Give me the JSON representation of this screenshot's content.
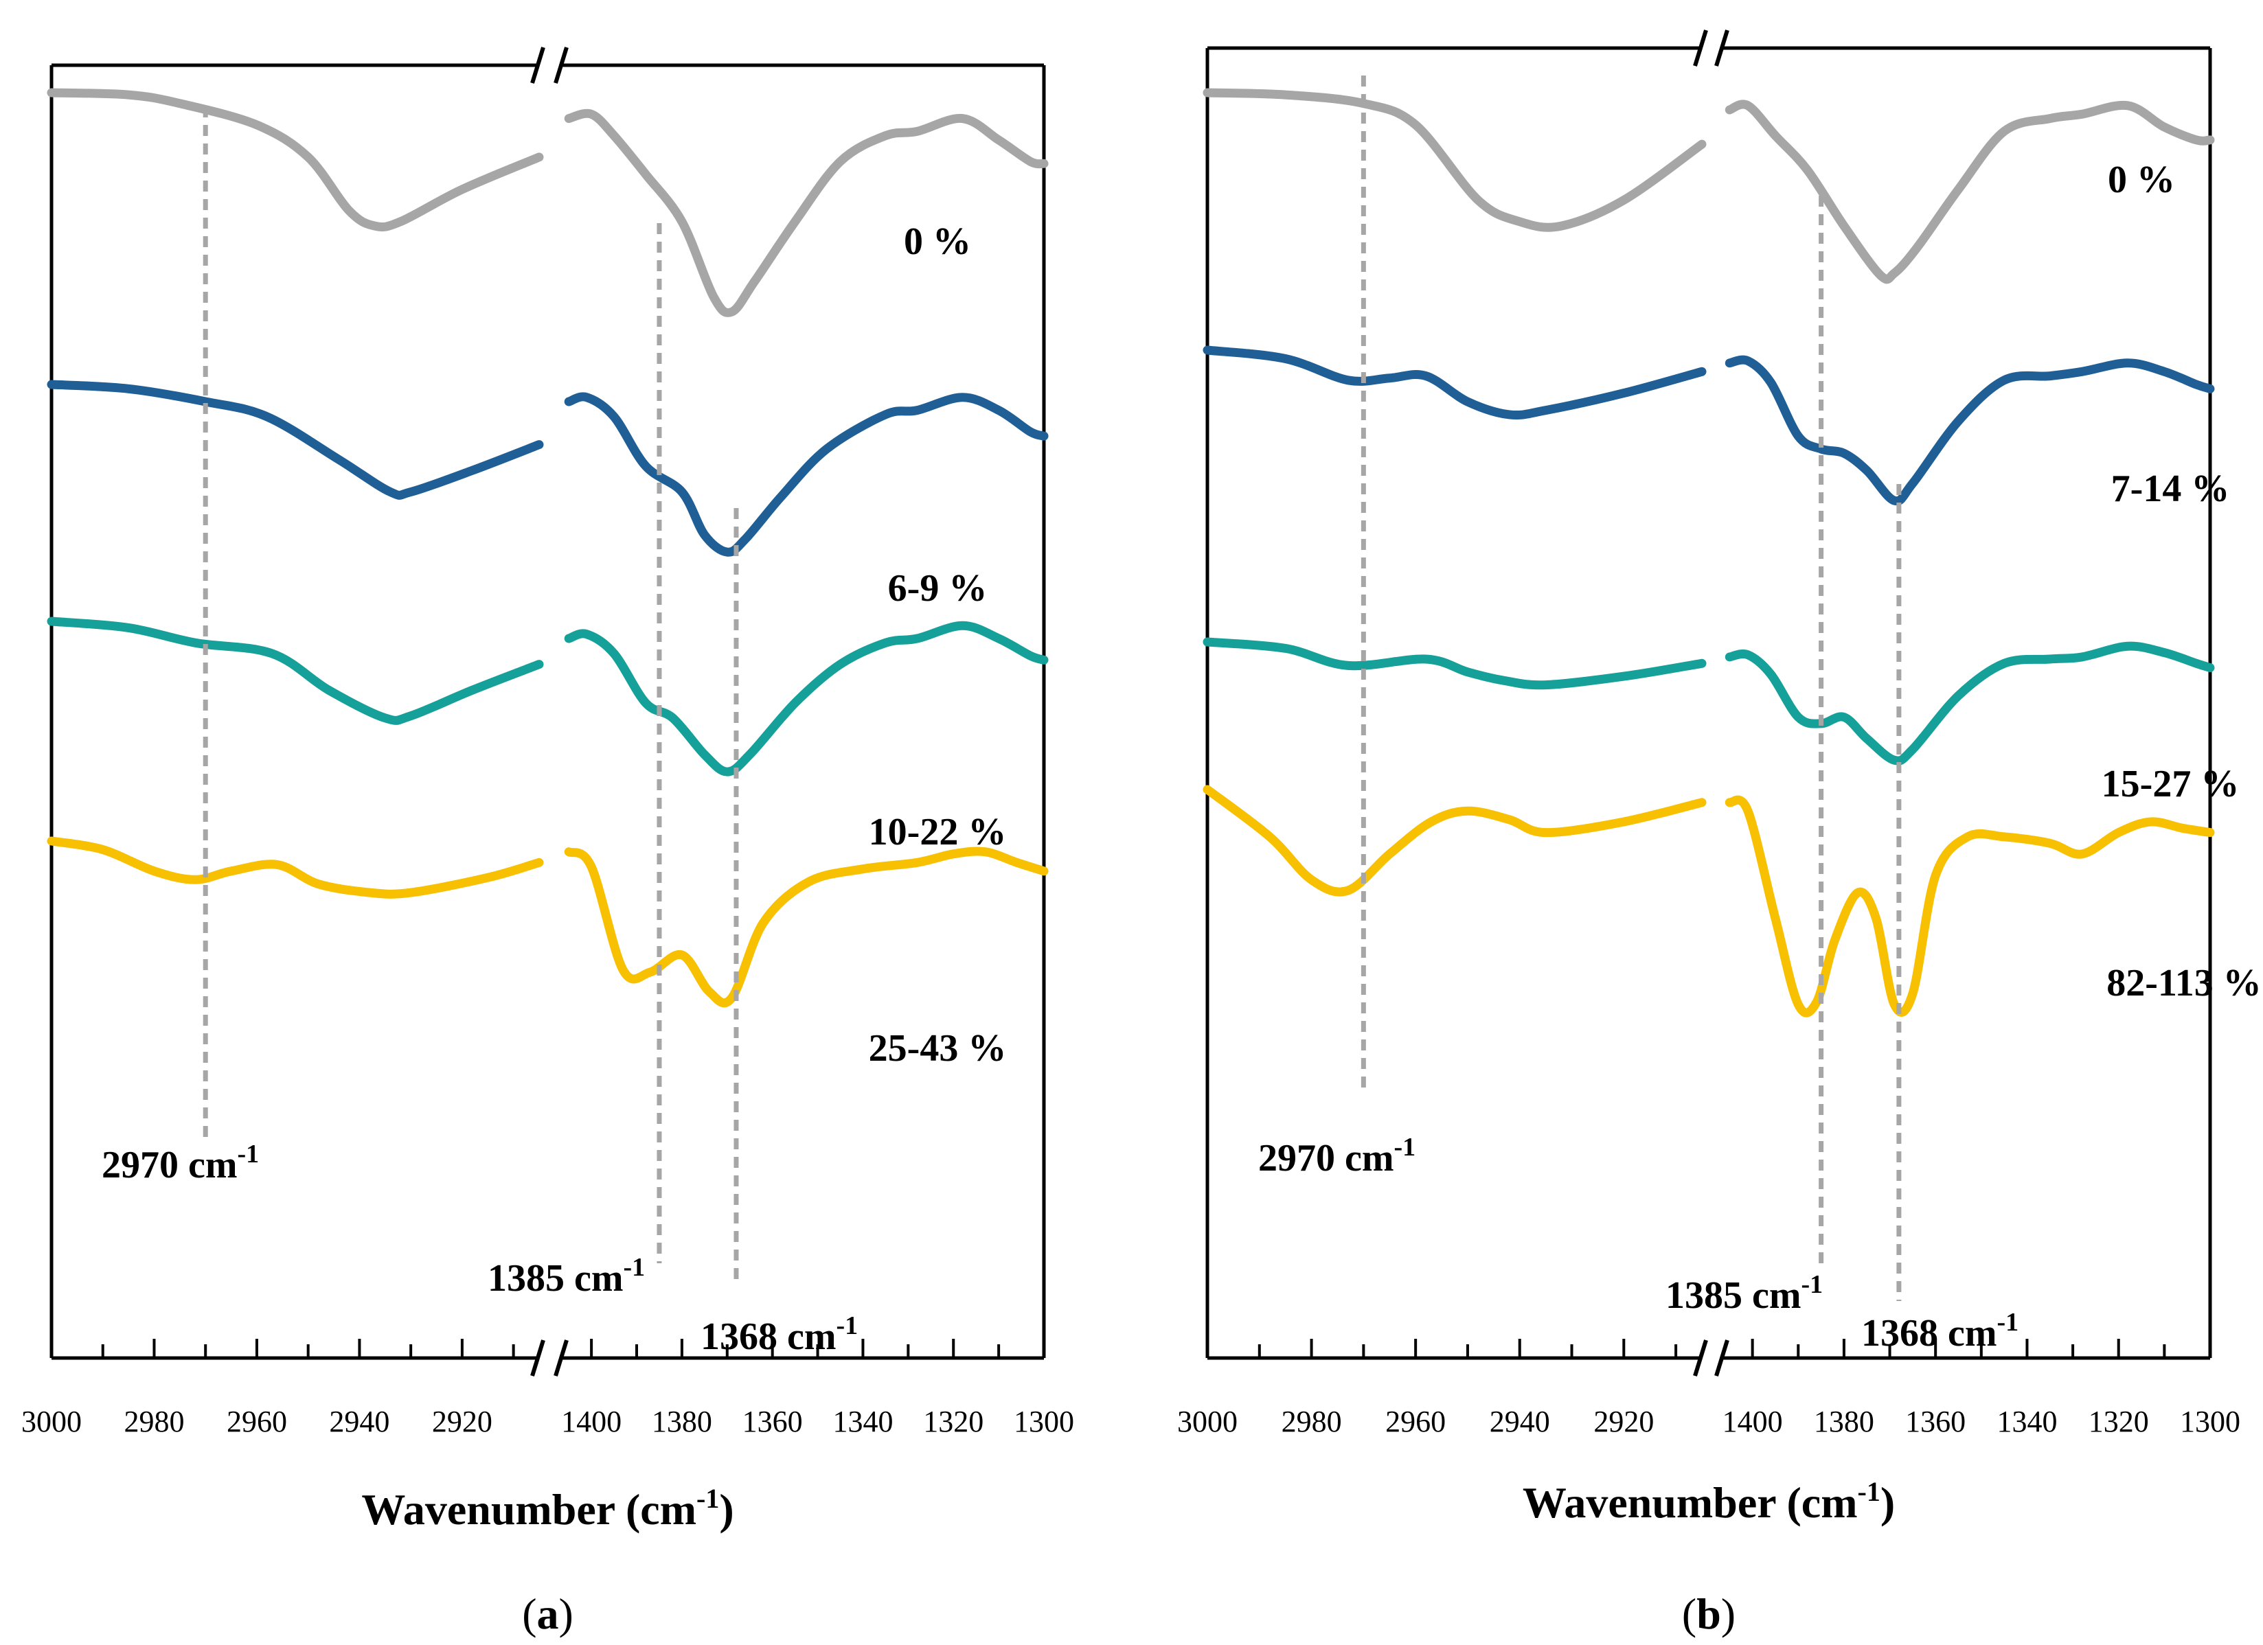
{
  "chart_data": [
    {
      "type": "line",
      "panel_label": "a",
      "xlabel": "Wavenumber (cm-1)",
      "xlabel_main": "Wavenumber (cm",
      "xlabel_sup": "-1",
      "xlabel_end": ")",
      "axis_break": true,
      "segments": [
        {
          "xlim": [
            3000,
            2905
          ],
          "ticks": [
            3000,
            2980,
            2960,
            2940,
            2920
          ],
          "tick_labels": [
            "3000",
            "2980",
            "2960",
            "2940",
            "2920"
          ]
        },
        {
          "xlim": [
            1407,
            1300
          ],
          "ticks": [
            1400,
            1380,
            1360,
            1340,
            1320,
            1300
          ],
          "tick_labels": [
            "1400",
            "1380",
            "1360",
            "1340",
            "1320",
            "1300"
          ]
        }
      ],
      "annotations": [
        {
          "x": 2970,
          "label": "2970 cm",
          "sup": "-1"
        },
        {
          "x": 1385,
          "label": "1385 cm",
          "sup": "-1"
        },
        {
          "x": 1368,
          "label": "1368 cm",
          "sup": "-1"
        }
      ],
      "series": [
        {
          "name": "0 %",
          "color": "#a6a6a6",
          "offset": 0.0,
          "high": [
            [
              3000,
              0.0
            ],
            [
              2985,
              0.01
            ],
            [
              2975,
              0.05
            ],
            [
              2960,
              0.15
            ],
            [
              2950,
              0.3
            ],
            [
              2942,
              0.55
            ],
            [
              2937,
              0.62
            ],
            [
              2932,
              0.6
            ],
            [
              2920,
              0.45
            ],
            [
              2905,
              0.3
            ]
          ],
          "low": [
            [
              1405,
              0.12
            ],
            [
              1400,
              0.1
            ],
            [
              1395,
              0.2
            ],
            [
              1388,
              0.38
            ],
            [
              1380,
              0.6
            ],
            [
              1373,
              0.95
            ],
            [
              1369,
              1.02
            ],
            [
              1364,
              0.88
            ],
            [
              1355,
              0.6
            ],
            [
              1345,
              0.32
            ],
            [
              1335,
              0.2
            ],
            [
              1328,
              0.18
            ],
            [
              1318,
              0.12
            ],
            [
              1310,
              0.22
            ],
            [
              1303,
              0.32
            ],
            [
              1300,
              0.33
            ]
          ]
        },
        {
          "name": "6-9 %",
          "color": "#1f5f96",
          "offset": 0.77,
          "high": [
            [
              3000,
              0.0
            ],
            [
              2985,
              0.02
            ],
            [
              2970,
              0.08
            ],
            [
              2958,
              0.15
            ],
            [
              2944,
              0.35
            ],
            [
              2934,
              0.5
            ],
            [
              2930,
              0.5
            ],
            [
              2918,
              0.4
            ],
            [
              2905,
              0.28
            ]
          ],
          "low": [
            [
              1405,
              0.08
            ],
            [
              1401,
              0.06
            ],
            [
              1395,
              0.15
            ],
            [
              1388,
              0.38
            ],
            [
              1380,
              0.5
            ],
            [
              1375,
              0.7
            ],
            [
              1370,
              0.78
            ],
            [
              1366,
              0.72
            ],
            [
              1358,
              0.52
            ],
            [
              1348,
              0.3
            ],
            [
              1335,
              0.14
            ],
            [
              1328,
              0.12
            ],
            [
              1318,
              0.06
            ],
            [
              1310,
              0.12
            ],
            [
              1303,
              0.22
            ],
            [
              1300,
              0.24
            ]
          ]
        },
        {
          "name": "10-22 %",
          "color": "#16a09a",
          "offset": 1.27,
          "high": [
            [
              3000,
              0.0
            ],
            [
              2985,
              0.03
            ],
            [
              2972,
              0.1
            ],
            [
              2957,
              0.15
            ],
            [
              2946,
              0.32
            ],
            [
              2935,
              0.45
            ],
            [
              2930,
              0.44
            ],
            [
              2918,
              0.32
            ],
            [
              2905,
              0.2
            ]
          ],
          "low": [
            [
              1405,
              0.08
            ],
            [
              1401,
              0.06
            ],
            [
              1395,
              0.15
            ],
            [
              1388,
              0.38
            ],
            [
              1382,
              0.45
            ],
            [
              1375,
              0.62
            ],
            [
              1370,
              0.7
            ],
            [
              1365,
              0.62
            ],
            [
              1355,
              0.38
            ],
            [
              1345,
              0.2
            ],
            [
              1335,
              0.1
            ],
            [
              1328,
              0.08
            ],
            [
              1318,
              0.02
            ],
            [
              1310,
              0.08
            ],
            [
              1303,
              0.16
            ],
            [
              1300,
              0.18
            ]
          ]
        },
        {
          "name": "25-43 %",
          "color": "#f7c000",
          "offset": 1.75,
          "high": [
            [
              3000,
              0.0
            ],
            [
              2990,
              0.04
            ],
            [
              2980,
              0.14
            ],
            [
              2972,
              0.18
            ],
            [
              2965,
              0.14
            ],
            [
              2956,
              0.11
            ],
            [
              2948,
              0.2
            ],
            [
              2938,
              0.24
            ],
            [
              2930,
              0.24
            ],
            [
              2915,
              0.17
            ],
            [
              2905,
              0.1
            ]
          ],
          "low": [
            [
              1405,
              0.05
            ],
            [
              1400,
              0.12
            ],
            [
              1393,
              0.6
            ],
            [
              1387,
              0.61
            ],
            [
              1380,
              0.53
            ],
            [
              1374,
              0.7
            ],
            [
              1369,
              0.73
            ],
            [
              1362,
              0.38
            ],
            [
              1352,
              0.19
            ],
            [
              1340,
              0.13
            ],
            [
              1328,
              0.1
            ],
            [
              1320,
              0.06
            ],
            [
              1313,
              0.05
            ],
            [
              1306,
              0.1
            ],
            [
              1300,
              0.14
            ]
          ]
        }
      ]
    },
    {
      "type": "line",
      "panel_label": "b",
      "xlabel": "Wavenumber (cm-1)",
      "xlabel_main": "Wavenumber (cm",
      "xlabel_sup": "-1",
      "xlabel_end": ")",
      "axis_break": true,
      "segments": [
        {
          "xlim": [
            3000,
            2905
          ],
          "ticks": [
            3000,
            2980,
            2960,
            2940,
            2920
          ],
          "tick_labels": [
            "3000",
            "2980",
            "2960",
            "2940",
            "2920"
          ]
        },
        {
          "xlim": [
            1407,
            1300
          ],
          "ticks": [
            1400,
            1380,
            1360,
            1340,
            1320,
            1300
          ],
          "tick_labels": [
            "1400",
            "1380",
            "1360",
            "1340",
            "1320",
            "1300"
          ]
        }
      ],
      "annotations": [
        {
          "x": 2970,
          "label": "2970 cm",
          "sup": "-1"
        },
        {
          "x": 1385,
          "label": "1385 cm",
          "sup": "-1"
        },
        {
          "x": 1368,
          "label": "1368 cm",
          "sup": "-1"
        }
      ],
      "series": [
        {
          "name": "0 %",
          "color": "#a6a6a6",
          "offset": 0.0,
          "high": [
            [
              3000,
              0.0
            ],
            [
              2985,
              0.01
            ],
            [
              2970,
              0.05
            ],
            [
              2960,
              0.15
            ],
            [
              2948,
              0.5
            ],
            [
              2940,
              0.6
            ],
            [
              2932,
              0.62
            ],
            [
              2920,
              0.5
            ],
            [
              2905,
              0.24
            ]
          ],
          "low": [
            [
              1405,
              0.08
            ],
            [
              1401,
              0.06
            ],
            [
              1395,
              0.2
            ],
            [
              1388,
              0.36
            ],
            [
              1380,
              0.62
            ],
            [
              1372,
              0.85
            ],
            [
              1369,
              0.84
            ],
            [
              1364,
              0.72
            ],
            [
              1355,
              0.45
            ],
            [
              1345,
              0.18
            ],
            [
              1335,
              0.12
            ],
            [
              1328,
              0.1
            ],
            [
              1318,
              0.06
            ],
            [
              1310,
              0.16
            ],
            [
              1303,
              0.22
            ],
            [
              1300,
              0.22
            ]
          ]
        },
        {
          "name": "7-14 %",
          "color": "#1f5f96",
          "offset": 0.47,
          "high": [
            [
              3000,
              0.0
            ],
            [
              2985,
              0.04
            ],
            [
              2973,
              0.14
            ],
            [
              2965,
              0.13
            ],
            [
              2958,
              0.12
            ],
            [
              2950,
              0.24
            ],
            [
              2942,
              0.3
            ],
            [
              2935,
              0.28
            ],
            [
              2920,
              0.2
            ],
            [
              2905,
              0.1
            ]
          ],
          "low": [
            [
              1405,
              0.06
            ],
            [
              1401,
              0.05
            ],
            [
              1396,
              0.15
            ],
            [
              1390,
              0.4
            ],
            [
              1385,
              0.46
            ],
            [
              1380,
              0.48
            ],
            [
              1375,
              0.56
            ],
            [
              1369,
              0.7
            ],
            [
              1365,
              0.62
            ],
            [
              1355,
              0.33
            ],
            [
              1345,
              0.14
            ],
            [
              1335,
              0.12
            ],
            [
              1328,
              0.1
            ],
            [
              1318,
              0.06
            ],
            [
              1310,
              0.1
            ],
            [
              1303,
              0.16
            ],
            [
              1300,
              0.18
            ]
          ]
        },
        {
          "name": "15-27 %",
          "color": "#16a09a",
          "offset": 0.97,
          "high": [
            [
              3000,
              0.0
            ],
            [
              2985,
              0.03
            ],
            [
              2973,
              0.11
            ],
            [
              2958,
              0.08
            ],
            [
              2950,
              0.14
            ],
            [
              2943,
              0.18
            ],
            [
              2935,
              0.2
            ],
            [
              2920,
              0.16
            ],
            [
              2905,
              0.1
            ]
          ],
          "low": [
            [
              1405,
              0.07
            ],
            [
              1401,
              0.06
            ],
            [
              1396,
              0.15
            ],
            [
              1390,
              0.35
            ],
            [
              1385,
              0.38
            ],
            [
              1380,
              0.35
            ],
            [
              1375,
              0.45
            ],
            [
              1369,
              0.55
            ],
            [
              1365,
              0.5
            ],
            [
              1355,
              0.25
            ],
            [
              1345,
              0.1
            ],
            [
              1335,
              0.08
            ],
            [
              1328,
              0.07
            ],
            [
              1318,
              0.02
            ],
            [
              1310,
              0.05
            ],
            [
              1303,
              0.1
            ],
            [
              1300,
              0.12
            ]
          ]
        },
        {
          "name": "82-113 %",
          "color": "#f7c000",
          "offset": 1.22,
          "high": [
            [
              3000,
              0.0
            ],
            [
              2988,
              0.22
            ],
            [
              2980,
              0.42
            ],
            [
              2973,
              0.47
            ],
            [
              2965,
              0.3
            ],
            [
              2957,
              0.15
            ],
            [
              2950,
              0.1
            ],
            [
              2942,
              0.14
            ],
            [
              2935,
              0.2
            ],
            [
              2920,
              0.15
            ],
            [
              2905,
              0.06
            ]
          ],
          "low": [
            [
              1405,
              0.06
            ],
            [
              1401,
              0.1
            ],
            [
              1395,
              0.6
            ],
            [
              1390,
              1.0
            ],
            [
              1386,
              0.99
            ],
            [
              1382,
              0.7
            ],
            [
              1377,
              0.48
            ],
            [
              1373,
              0.6
            ],
            [
              1369,
              1.0
            ],
            [
              1365,
              0.95
            ],
            [
              1360,
              0.4
            ],
            [
              1353,
              0.22
            ],
            [
              1345,
              0.22
            ],
            [
              1335,
              0.25
            ],
            [
              1328,
              0.3
            ],
            [
              1320,
              0.2
            ],
            [
              1313,
              0.15
            ],
            [
              1306,
              0.18
            ],
            [
              1300,
              0.2
            ]
          ]
        }
      ]
    }
  ]
}
